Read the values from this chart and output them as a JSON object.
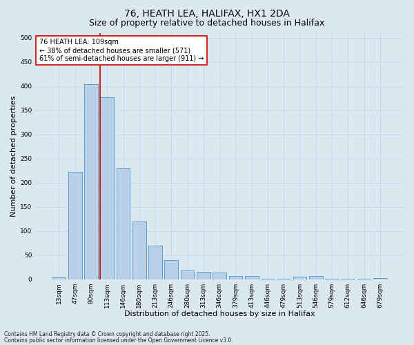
{
  "title1": "76, HEATH LEA, HALIFAX, HX1 2DA",
  "title2": "Size of property relative to detached houses in Halifax",
  "xlabel": "Distribution of detached houses by size in Halifax",
  "ylabel": "Number of detached properties",
  "categories": [
    "13sqm",
    "47sqm",
    "80sqm",
    "113sqm",
    "146sqm",
    "180sqm",
    "213sqm",
    "246sqm",
    "280sqm",
    "313sqm",
    "346sqm",
    "379sqm",
    "413sqm",
    "446sqm",
    "479sqm",
    "513sqm",
    "546sqm",
    "579sqm",
    "612sqm",
    "646sqm",
    "679sqm"
  ],
  "values": [
    3,
    222,
    403,
    376,
    229,
    120,
    69,
    39,
    18,
    15,
    13,
    6,
    6,
    1,
    1,
    5,
    6,
    1,
    1,
    1,
    2
  ],
  "bar_color": "#b8d0e8",
  "bar_edge_color": "#5a9fd4",
  "vline_x_idx": 3,
  "vline_color": "#cc0000",
  "annotation_text": "76 HEATH LEA: 109sqm\n← 38% of detached houses are smaller (571)\n61% of semi-detached houses are larger (911) →",
  "annotation_box_color": "#ffffff",
  "annotation_box_edge": "#cc0000",
  "ylim": [
    0,
    510
  ],
  "yticks": [
    0,
    50,
    100,
    150,
    200,
    250,
    300,
    350,
    400,
    450,
    500
  ],
  "grid_color": "#c8d8e8",
  "bg_color": "#dce8f0",
  "footer1": "Contains HM Land Registry data © Crown copyright and database right 2025.",
  "footer2": "Contains public sector information licensed under the Open Government Licence v3.0.",
  "title_fontsize": 10,
  "subtitle_fontsize": 9,
  "axis_label_fontsize": 8,
  "tick_fontsize": 6.5,
  "annotation_fontsize": 7,
  "footer_fontsize": 5.5
}
